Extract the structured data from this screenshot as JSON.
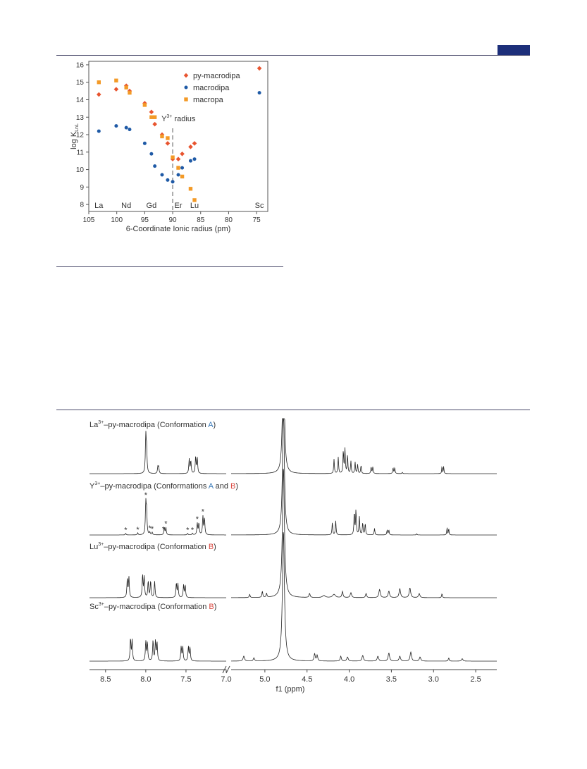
{
  "page": {
    "accent_color": "#1d2f7a"
  },
  "chart_data": [
    {
      "type": "scatter",
      "title": "",
      "xlabel": "6-Coordinate Ionic radius (pm)",
      "ylabel_main": "log K",
      "ylabel_sub": "LnL",
      "xlim": [
        105,
        73
      ],
      "ylim": [
        7.6,
        16.2
      ],
      "x_ticks": [
        105,
        100,
        95,
        90,
        85,
        80,
        75
      ],
      "y_ticks": [
        8,
        9,
        10,
        11,
        12,
        13,
        14,
        15,
        16
      ],
      "legend_position": "top-right",
      "element_labels": [
        {
          "label": "La",
          "x": 103.2
        },
        {
          "label": "Nd",
          "x": 98.3
        },
        {
          "label": "Gd",
          "x": 93.8
        },
        {
          "label": "Er",
          "x": 89.0
        },
        {
          "label": "Lu",
          "x": 86.1
        },
        {
          "label": "Sc",
          "x": 74.5
        }
      ],
      "annotation": {
        "text_main": "Y",
        "text_sup": "3+",
        "text_after": " radius",
        "x": 90.0
      },
      "series": [
        {
          "name": "py-macrodipa",
          "color": "#e8542f",
          "marker": "diamond",
          "x": [
            103.2,
            100.1,
            98.3,
            97.7,
            95.0,
            93.8,
            93.2,
            91.9,
            90.9,
            90.0,
            89.0,
            88.3,
            86.8,
            86.1,
            74.5
          ],
          "y": [
            14.3,
            14.6,
            14.8,
            14.5,
            13.8,
            13.3,
            12.6,
            12.0,
            11.5,
            10.6,
            10.6,
            10.9,
            11.3,
            11.5,
            15.8
          ]
        },
        {
          "name": "macrodipa",
          "color": "#1f5aa6",
          "marker": "circle",
          "x": [
            103.2,
            100.1,
            98.3,
            97.7,
            95.0,
            93.8,
            93.2,
            91.9,
            90.9,
            90.0,
            89.0,
            88.3,
            86.8,
            86.1,
            74.5
          ],
          "y": [
            12.2,
            12.5,
            12.4,
            12.3,
            11.5,
            10.9,
            10.2,
            9.7,
            9.4,
            9.3,
            9.7,
            10.1,
            10.5,
            10.6,
            14.4
          ]
        },
        {
          "name": "macropa",
          "color": "#f39a27",
          "marker": "square",
          "x": [
            103.2,
            100.1,
            98.3,
            97.7,
            95.0,
            93.8,
            93.2,
            91.9,
            90.9,
            90.0,
            89.0,
            88.3,
            86.8,
            86.1
          ],
          "y": [
            15.0,
            15.1,
            14.7,
            14.4,
            13.7,
            13.0,
            13.0,
            11.9,
            11.8,
            10.7,
            10.1,
            9.6,
            8.9,
            8.25
          ]
        }
      ]
    },
    {
      "type": "line",
      "title": "",
      "xlabel": "f1 (ppm)",
      "x_ticks_left": [
        "8.5",
        "8.0",
        "7.5",
        "7.0"
      ],
      "x_ticks_right": [
        "5.0",
        "4.5",
        "4.0",
        "3.5",
        "3.0",
        "2.5"
      ],
      "x_tick_values_left": [
        8.5,
        8.0,
        7.5,
        7.0
      ],
      "x_tick_values_right": [
        5.0,
        4.5,
        4.0,
        3.5,
        3.0,
        2.5
      ],
      "x_segments": [
        [
          8.7,
          7.0
        ],
        [
          5.4,
          2.25
        ]
      ],
      "star_colors": {
        "red": "#d9473f",
        "blue": "#3a7ab8"
      },
      "spectra": [
        {
          "label": [
            {
              "t": "La"
            },
            {
              "t": "3+",
              "sup": true
            },
            {
              "t": "–py-macrodipa (Conformation "
            },
            {
              "t": "A",
              "color": "#3a7ab8"
            },
            {
              "t": ")"
            }
          ],
          "peaks": [
            [
              8.0,
              0.9,
              0.006
            ],
            [
              7.99,
              0.55,
              0.006
            ],
            [
              7.85,
              0.15,
              0.006
            ],
            [
              7.84,
              0.15,
              0.006
            ],
            [
              7.46,
              0.35,
              0.006
            ],
            [
              7.44,
              0.3,
              0.006
            ],
            [
              7.38,
              0.4,
              0.006
            ],
            [
              7.36,
              0.38,
              0.006
            ],
            [
              4.78,
              3.4,
              0.012
            ],
            [
              4.18,
              0.35,
              0.005
            ],
            [
              4.13,
              0.4,
              0.005
            ],
            [
              4.07,
              0.55,
              0.005
            ],
            [
              4.05,
              0.6,
              0.005
            ],
            [
              4.02,
              0.45,
              0.005
            ],
            [
              3.98,
              0.3,
              0.005
            ],
            [
              3.93,
              0.28,
              0.005
            ],
            [
              3.9,
              0.22,
              0.005
            ],
            [
              3.86,
              0.2,
              0.005
            ],
            [
              3.74,
              0.16,
              0.005
            ],
            [
              3.72,
              0.16,
              0.005
            ],
            [
              3.48,
              0.14,
              0.005
            ],
            [
              3.46,
              0.14,
              0.005
            ],
            [
              3.37,
              0.03,
              0.005
            ],
            [
              2.9,
              0.18,
              0.004
            ],
            [
              2.88,
              0.18,
              0.004
            ]
          ],
          "stars": []
        },
        {
          "label": [
            {
              "t": "Y"
            },
            {
              "t": "3+",
              "sup": true
            },
            {
              "t": "–py-macrodipa (Conformations "
            },
            {
              "t": "A",
              "color": "#3a7ab8"
            },
            {
              "t": " and "
            },
            {
              "t": "B",
              "color": "#d9473f"
            },
            {
              "t": ")"
            }
          ],
          "peaks": [
            [
              8.25,
              0.04,
              0.006
            ],
            [
              8.1,
              0.05,
              0.006
            ],
            [
              8.0,
              0.75,
              0.006
            ],
            [
              7.99,
              0.55,
              0.006
            ],
            [
              7.95,
              0.06,
              0.006
            ],
            [
              7.92,
              0.06,
              0.006
            ],
            [
              7.77,
              0.18,
              0.006
            ],
            [
              7.75,
              0.18,
              0.006
            ],
            [
              7.48,
              0.04,
              0.006
            ],
            [
              7.42,
              0.04,
              0.006
            ],
            [
              7.36,
              0.28,
              0.006
            ],
            [
              7.34,
              0.28,
              0.006
            ],
            [
              7.29,
              0.45,
              0.006
            ],
            [
              7.27,
              0.4,
              0.006
            ],
            [
              4.78,
              3.4,
              0.012
            ],
            [
              4.2,
              0.3,
              0.005
            ],
            [
              4.16,
              0.35,
              0.005
            ],
            [
              3.94,
              0.55,
              0.005
            ],
            [
              3.92,
              0.6,
              0.005
            ],
            [
              3.88,
              0.45,
              0.005
            ],
            [
              3.84,
              0.3,
              0.005
            ],
            [
              3.81,
              0.28,
              0.005
            ],
            [
              3.7,
              0.16,
              0.005
            ],
            [
              3.55,
              0.12,
              0.005
            ],
            [
              3.53,
              0.12,
              0.005
            ],
            [
              3.2,
              0.03,
              0.005
            ],
            [
              2.84,
              0.18,
              0.004
            ],
            [
              2.82,
              0.16,
              0.004
            ]
          ],
          "stars": [
            [
              8.25,
              "red"
            ],
            [
              8.1,
              "red"
            ],
            [
              8.0,
              "blue"
            ],
            [
              7.95,
              "red"
            ],
            [
              7.92,
              "red"
            ],
            [
              7.78,
              "blue"
            ],
            [
              7.75,
              "red"
            ],
            [
              7.48,
              "red"
            ],
            [
              7.42,
              "red"
            ],
            [
              7.36,
              "blue"
            ],
            [
              7.29,
              "blue"
            ]
          ]
        },
        {
          "label": [
            {
              "t": "Lu"
            },
            {
              "t": "3+",
              "sup": true
            },
            {
              "t": "–py-macrodipa (Conformation "
            },
            {
              "t": "B",
              "color": "#d9473f"
            },
            {
              "t": ")"
            }
          ],
          "peaks": [
            [
              8.23,
              0.45,
              0.006
            ],
            [
              8.21,
              0.5,
              0.006
            ],
            [
              8.04,
              0.55,
              0.006
            ],
            [
              8.02,
              0.5,
              0.006
            ],
            [
              7.97,
              0.4,
              0.006
            ],
            [
              7.94,
              0.4,
              0.006
            ],
            [
              7.89,
              0.4,
              0.006
            ],
            [
              7.62,
              0.35,
              0.006
            ],
            [
              7.6,
              0.33,
              0.006
            ],
            [
              7.53,
              0.3,
              0.006
            ],
            [
              7.51,
              0.3,
              0.006
            ],
            [
              5.18,
              0.08,
              0.006
            ],
            [
              5.03,
              0.15,
              0.006
            ],
            [
              4.98,
              0.1,
              0.006
            ],
            [
              4.78,
              3.2,
              0.014
            ],
            [
              4.47,
              0.1,
              0.008
            ],
            [
              4.3,
              0.05,
              0.02
            ],
            [
              4.18,
              0.08,
              0.02
            ],
            [
              4.08,
              0.15,
              0.008
            ],
            [
              3.98,
              0.12,
              0.01
            ],
            [
              3.8,
              0.1,
              0.008
            ],
            [
              3.64,
              0.2,
              0.01
            ],
            [
              3.53,
              0.16,
              0.01
            ],
            [
              3.4,
              0.22,
              0.01
            ],
            [
              3.28,
              0.24,
              0.01
            ],
            [
              3.17,
              0.1,
              0.01
            ],
            [
              2.9,
              0.1,
              0.005
            ]
          ],
          "stars": []
        },
        {
          "label": [
            {
              "t": "Sc"
            },
            {
              "t": "3+",
              "sup": true
            },
            {
              "t": "–py-macrodipa (Conformation "
            },
            {
              "t": "B",
              "color": "#d9473f"
            },
            {
              "t": ")"
            }
          ],
          "peaks": [
            [
              8.19,
              0.55,
              0.006
            ],
            [
              8.17,
              0.5,
              0.006
            ],
            [
              8.0,
              0.48,
              0.006
            ],
            [
              7.98,
              0.45,
              0.006
            ],
            [
              7.91,
              0.5,
              0.006
            ],
            [
              7.88,
              0.48,
              0.006
            ],
            [
              7.86,
              0.45,
              0.006
            ],
            [
              7.56,
              0.35,
              0.006
            ],
            [
              7.54,
              0.35,
              0.006
            ],
            [
              7.47,
              0.35,
              0.006
            ],
            [
              7.45,
              0.33,
              0.006
            ],
            [
              5.25,
              0.12,
              0.01
            ],
            [
              5.13,
              0.08,
              0.008
            ],
            [
              4.78,
              3.2,
              0.014
            ],
            [
              4.41,
              0.18,
              0.008
            ],
            [
              4.38,
              0.14,
              0.008
            ],
            [
              4.1,
              0.12,
              0.008
            ],
            [
              4.02,
              0.1,
              0.01
            ],
            [
              3.84,
              0.14,
              0.01
            ],
            [
              3.66,
              0.12,
              0.01
            ],
            [
              3.53,
              0.2,
              0.01
            ],
            [
              3.4,
              0.12,
              0.01
            ],
            [
              3.27,
              0.22,
              0.01
            ],
            [
              3.16,
              0.1,
              0.01
            ],
            [
              2.82,
              0.08,
              0.006
            ],
            [
              2.66,
              0.06,
              0.01
            ]
          ],
          "stars": []
        }
      ]
    }
  ]
}
